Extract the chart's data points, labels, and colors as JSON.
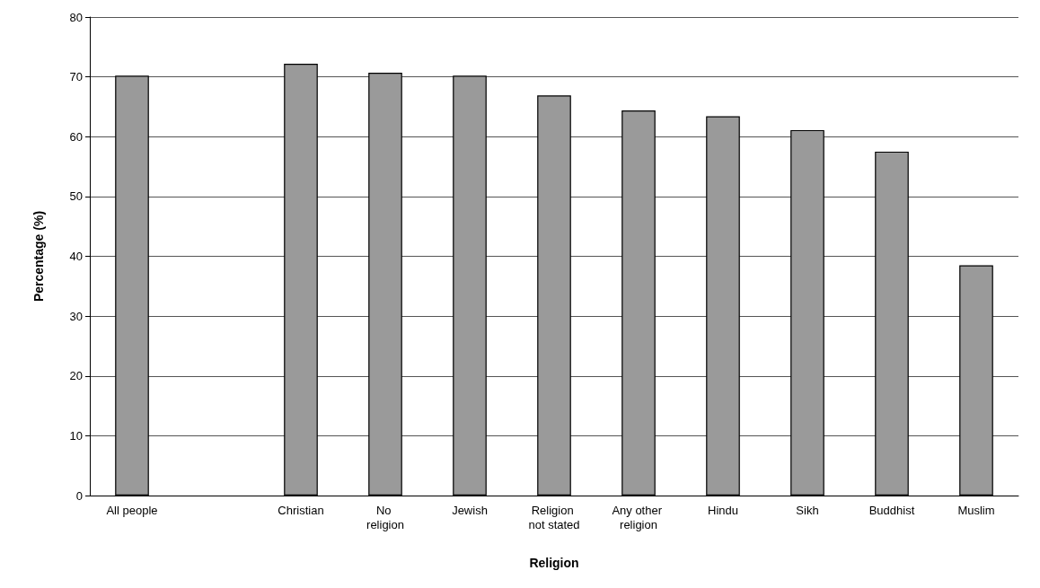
{
  "chart_data": {
    "type": "bar",
    "xlabel": "Religion",
    "ylabel": "Percentage (%)",
    "categories": [
      "All people",
      null,
      "Christian",
      "No religion",
      "Jewish",
      "Religion not stated",
      "Any other religion",
      "Hindu",
      "Sikh",
      "Buddhist",
      "Muslim"
    ],
    "values": [
      70.2,
      null,
      72.2,
      70.7,
      70.2,
      66.9,
      64.4,
      63.4,
      61.1,
      57.5,
      38.5
    ],
    "color": "#9a9a9a",
    "ylim": [
      0,
      80
    ],
    "yticks": [
      0,
      10,
      20,
      30,
      40,
      50,
      60,
      70,
      80
    ],
    "grid": "y"
  }
}
